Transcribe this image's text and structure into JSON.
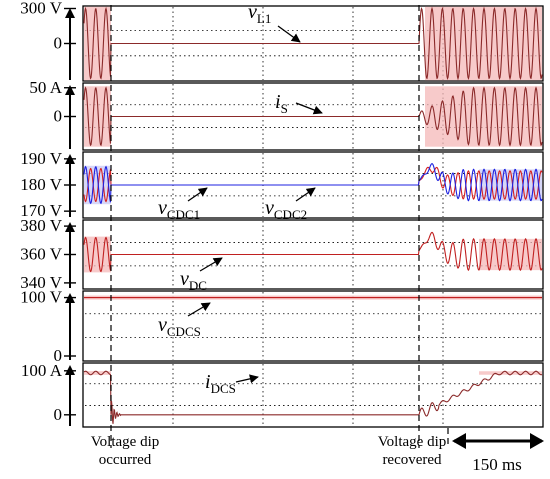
{
  "chart_data": {
    "type": "line",
    "title": "",
    "time_scale": {
      "label": "150 ms",
      "value_ms": 150
    },
    "events": [
      {
        "label_lines": [
          "Voltage dip",
          "occurred"
        ]
      },
      {
        "label_lines": [
          "Voltage dip",
          "recovered"
        ]
      }
    ],
    "grid": true,
    "panels": [
      {
        "signal": "vL1",
        "symbol": "v",
        "subscript": "L1",
        "ticks": [
          {
            "label": "300 V",
            "value": 300
          },
          {
            "label": "0",
            "value": 0
          }
        ],
        "ylim": [
          -330,
          330
        ],
        "pre": {
          "amplitude": 300,
          "offset": 0
        },
        "dip": {
          "level": 0
        },
        "post": {
          "amplitude": 300,
          "offset": 0
        },
        "color": "#8B2A2A",
        "envelope": "#F4B8B8"
      },
      {
        "signal": "iS",
        "symbol": "i",
        "subscript": "S",
        "ticks": [
          {
            "label": "50 A",
            "value": 50
          },
          {
            "label": "0",
            "value": 0
          }
        ],
        "ylim": [
          -60,
          60
        ],
        "pre": {
          "amplitude": 50,
          "offset": 0
        },
        "dip": {
          "level": 0
        },
        "post": {
          "amplitude": 50,
          "offset": 0
        },
        "color": "#8B2A2A",
        "envelope": "#F4B8B8"
      },
      {
        "signal": "vCDC",
        "symbol": "v",
        "subscript": "CDC1",
        "extra_label": {
          "symbol": "v",
          "subscript": "CDC2"
        },
        "ticks": [
          {
            "label": "190 V",
            "value": 190
          },
          {
            "label": "180 V",
            "value": 180
          },
          {
            "label": "170 V",
            "value": 170
          }
        ],
        "ylim": [
          167,
          193
        ],
        "pre": {
          "amplitude": 7,
          "offset": 180
        },
        "dip": {
          "level": 180
        },
        "post": {
          "amplitude": 6,
          "offset": 180
        },
        "color": "#1E22E0",
        "color2": "#D62020",
        "envelope": "#C9CAF5"
      },
      {
        "signal": "vDC",
        "symbol": "v",
        "subscript": "DC",
        "ticks": [
          {
            "label": "380 V",
            "value": 380
          },
          {
            "label": "360 V",
            "value": 360
          },
          {
            "label": "340 V",
            "value": 340
          }
        ],
        "ylim": [
          335,
          385
        ],
        "pre": {
          "amplitude": 12,
          "offset": 360
        },
        "dip": {
          "level": 360
        },
        "post": {
          "amplitude": 11,
          "offset": 360
        },
        "color": "#C02020",
        "envelope": "#F4B8B8"
      },
      {
        "signal": "vCDCS",
        "symbol": "v",
        "subscript": "CDCS",
        "ticks": [
          {
            "label": "100 V",
            "value": 100
          },
          {
            "label": "0",
            "value": 0
          }
        ],
        "ylim": [
          -2,
          112
        ],
        "pre": {
          "level": 100
        },
        "dip": {
          "level": 100
        },
        "post": {
          "level": 100
        },
        "color": "#C02020",
        "envelope": "#F4B8B8"
      },
      {
        "signal": "iDCS",
        "symbol": "i",
        "subscript": "DCS",
        "ticks": [
          {
            "label": "100 A",
            "value": 100
          },
          {
            "label": "0",
            "value": 0
          }
        ],
        "ylim": [
          -30,
          120
        ],
        "pre": {
          "amplitude": 4,
          "offset": 95
        },
        "dip": {
          "level": 0
        },
        "post": {
          "amplitude": 4,
          "offset": 95
        },
        "color": "#8B2A2A",
        "envelope": "#F4B8B8"
      }
    ]
  }
}
